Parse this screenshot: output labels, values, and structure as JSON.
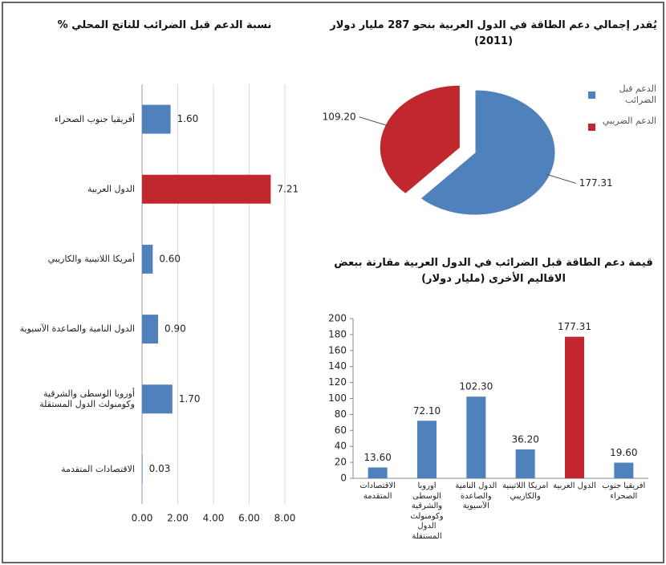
{
  "chart_data": [
    {
      "type": "barh",
      "title": "نسبة الدعم قبل الضرائب للناتج المحلي %",
      "categories": [
        "أفريقيا جنوب الصحراء",
        "الدول العربية",
        "أمريكا اللاتينية والكاريبي",
        "الدول النامية والصاعدة الآسيوية",
        "أوروبا الوسطى والشرقية وكومنولث الدول المستقلة",
        "الاقتصادات المتقدمة"
      ],
      "values": [
        1.6,
        7.21,
        0.6,
        0.9,
        1.7,
        0.03
      ],
      "value_labels": [
        "1.60",
        "7.21",
        "0.60",
        "0.90",
        "1.70",
        "0.03"
      ],
      "colors": [
        "#4f81bd",
        "#c0282d",
        "#4f81bd",
        "#4f81bd",
        "#4f81bd",
        "#4f81bd"
      ],
      "xlim": [
        0,
        8
      ],
      "xticks": [
        {
          "value": 0,
          "label": "0.00"
        },
        {
          "value": 2,
          "label": "2.00"
        },
        {
          "value": 4,
          "label": "4.00"
        },
        {
          "value": 6,
          "label": "6.00"
        },
        {
          "value": 8,
          "label": "8.00"
        }
      ],
      "grid": true
    },
    {
      "type": "pie",
      "title": "يُقدر إجمالي دعم الطاقة في الدول العربية بنحو 287 مليار دولار (2011)",
      "categories": [
        "الدعم قبل الضرائب",
        "الدعم الضريبي"
      ],
      "values": [
        177.31,
        109.2
      ],
      "value_labels": [
        "177.31",
        "109.20"
      ],
      "colors": [
        "#4f81bd",
        "#c0282d"
      ]
    },
    {
      "type": "bar",
      "title": "قيمة دعم الطاقة قبل الضرائب في الدول العربية مقارنة ببعض الاقاليم الأخرى (مليار دولار)",
      "categories": [
        "الاقتصادات المتقدمة",
        "أوروبا الوسطى والشرقية وكومنولث الدول المستقلة",
        "الدول النامية والصاعدة الآسيوية",
        "أمريكا اللاتينية والكاريبي",
        "الدول العربية",
        "أفريقيا جنوب الصحراء"
      ],
      "values": [
        13.6,
        72.1,
        102.3,
        36.2,
        177.31,
        19.6
      ],
      "value_labels": [
        "13.60",
        "72.10",
        "102.30",
        "36.20",
        "177.31",
        "19.60"
      ],
      "colors": [
        "#4f81bd",
        "#4f81bd",
        "#4f81bd",
        "#4f81bd",
        "#c0282d",
        "#4f81bd"
      ],
      "ylim": [
        0,
        200
      ],
      "yticks": [
        0,
        20,
        40,
        60,
        80,
        100,
        120,
        140,
        160,
        180,
        200
      ]
    }
  ]
}
